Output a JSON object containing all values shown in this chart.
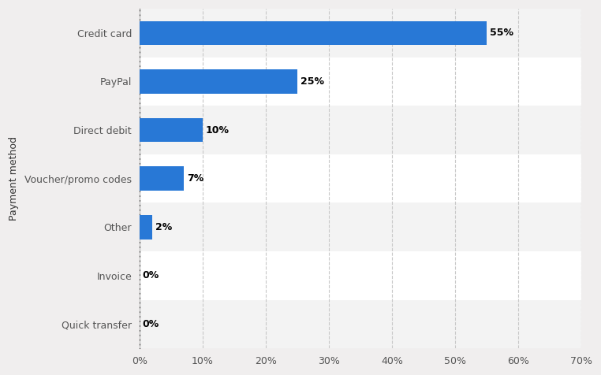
{
  "categories": [
    "Quick transfer",
    "Invoice",
    "Other",
    "Voucher/promo codes",
    "Direct debit",
    "PayPal",
    "Credit card"
  ],
  "values": [
    0,
    0,
    2,
    7,
    10,
    25,
    55
  ],
  "labels": [
    "0%",
    "0%",
    "2%",
    "7%",
    "10%",
    "25%",
    "55%"
  ],
  "bar_color": "#2878d6",
  "background_color": "#f0eeee",
  "plot_area_color": "#ffffff",
  "row_shading_color": "#e8e8e8",
  "ylabel": "Payment method",
  "xlim": [
    0,
    70
  ],
  "xticks": [
    0,
    10,
    20,
    30,
    40,
    50,
    60,
    70
  ],
  "xtick_labels": [
    "0%",
    "10%",
    "20%",
    "30%",
    "40%",
    "50%",
    "60%",
    "70%"
  ],
  "grid_color": "#c8c8c8",
  "bar_height": 0.5,
  "label_fontsize": 9,
  "tick_fontsize": 9,
  "ylabel_fontsize": 9
}
